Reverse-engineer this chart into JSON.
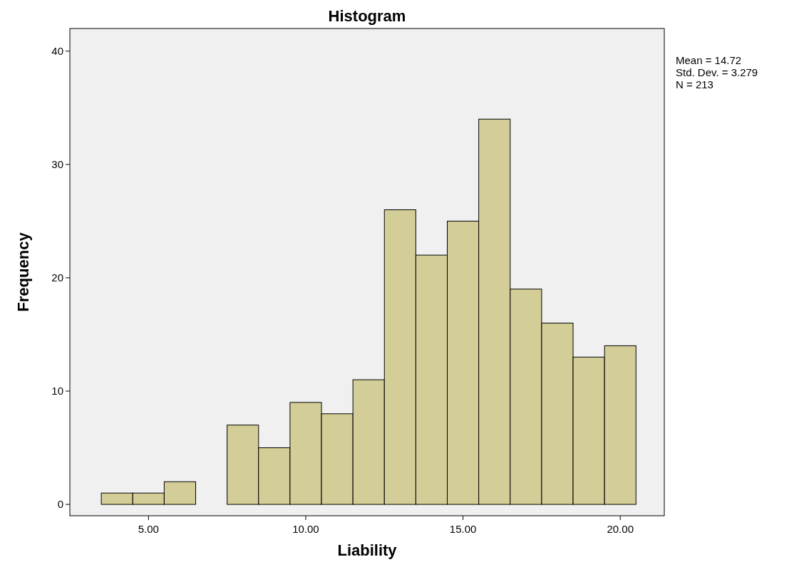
{
  "chart_data": {
    "type": "histogram",
    "title": "Histogram",
    "xlabel": "Liability",
    "ylabel": "Frequency",
    "bins": [
      3.5,
      4.5,
      5.5,
      6.5,
      7.5,
      8.5,
      9.5,
      10.5,
      11.5,
      12.5,
      13.5,
      14.5,
      15.5,
      16.5,
      17.5,
      18.5,
      19.5,
      20.5
    ],
    "values": [
      1,
      1,
      2,
      0,
      7,
      5,
      9,
      8,
      11,
      26,
      22,
      25,
      34,
      19,
      16,
      13,
      14
    ],
    "color": "#d3ce97",
    "xlim": [
      2.5,
      21.4
    ],
    "ylim": [
      -1,
      42
    ],
    "xticks": [
      {
        "value": 5,
        "label": "5.00"
      },
      {
        "value": 10,
        "label": "10.00"
      },
      {
        "value": 15,
        "label": "15.00"
      },
      {
        "value": 20,
        "label": "20.00"
      }
    ],
    "yticks": [
      0,
      10,
      20,
      30,
      40
    ],
    "annotations": [
      "Mean = 14.72",
      "Std. Dev. = 3.279",
      "N = 213"
    ]
  }
}
